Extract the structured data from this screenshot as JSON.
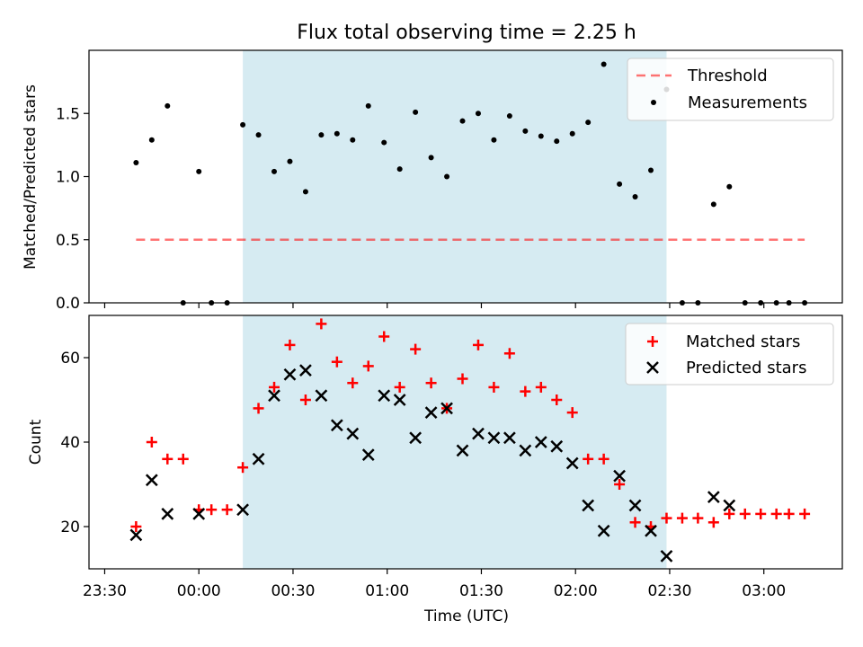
{
  "chart_data": [
    {
      "type": "scatter",
      "title": "Flux total observing time = 2.25 h",
      "ylabel": "Matched/Predicted stars",
      "xlabel": "",
      "xlim": [
        "23:25",
        "03:25"
      ],
      "ylim": [
        0,
        2.0
      ],
      "yticks": [
        "0.0",
        "0.5",
        "1.0",
        "1.5"
      ],
      "grid": false,
      "legend_position": "top-right",
      "shaded_interval": {
        "start": "00:14",
        "end": "02:29",
        "color": "#add8e6"
      },
      "threshold": {
        "name": "Threshold",
        "value": 0.5,
        "x_start": "23:40",
        "x_end": "03:13",
        "color": "#ff0000",
        "style": "dashed"
      },
      "series": [
        {
          "name": "Measurements",
          "color": "#000000",
          "marker": "dot",
          "x": [
            "23:40",
            "23:45",
            "23:50",
            "23:55",
            "00:00",
            "00:04",
            "00:09",
            "00:14",
            "00:19",
            "00:24",
            "00:29",
            "00:34",
            "00:39",
            "00:44",
            "00:49",
            "00:54",
            "00:59",
            "01:04",
            "01:09",
            "01:14",
            "01:19",
            "01:24",
            "01:29",
            "01:34",
            "01:39",
            "01:44",
            "01:49",
            "01:54",
            "01:59",
            "02:04",
            "02:09",
            "02:14",
            "02:19",
            "02:24",
            "02:29",
            "02:34",
            "02:39",
            "02:44",
            "02:49",
            "02:54",
            "02:59",
            "03:04",
            "03:08",
            "03:13"
          ],
          "values": [
            1.11,
            1.29,
            1.56,
            0.0,
            1.04,
            0.0,
            0.0,
            1.41,
            1.33,
            1.04,
            1.12,
            0.88,
            1.33,
            1.34,
            1.29,
            1.56,
            1.27,
            1.06,
            1.51,
            1.15,
            1.0,
            1.44,
            1.5,
            1.29,
            1.48,
            1.36,
            1.32,
            1.28,
            1.34,
            1.43,
            1.89,
            0.94,
            0.84,
            1.05,
            1.69,
            0.0,
            0.0,
            0.78,
            0.92,
            0.0,
            0.0,
            0.0,
            0.0,
            0.0
          ]
        }
      ]
    },
    {
      "type": "scatter",
      "title": "",
      "ylabel": "Count",
      "xlabel": "Time (UTC)",
      "xlim": [
        "23:25",
        "03:25"
      ],
      "ylim": [
        10,
        70
      ],
      "xticks": [
        "23:30",
        "00:00",
        "00:30",
        "01:00",
        "01:30",
        "02:00",
        "02:30",
        "03:00"
      ],
      "yticks": [
        "20",
        "40",
        "60"
      ],
      "grid": false,
      "legend_position": "top-right",
      "shaded_interval": {
        "start": "00:14",
        "end": "02:29",
        "color": "#add8e6"
      },
      "series": [
        {
          "name": "Matched stars",
          "color": "#ff0000",
          "marker": "plus",
          "x": [
            "23:40",
            "23:45",
            "23:50",
            "23:55",
            "00:00",
            "00:04",
            "00:09",
            "00:14",
            "00:19",
            "00:24",
            "00:29",
            "00:34",
            "00:39",
            "00:44",
            "00:49",
            "00:54",
            "00:59",
            "01:04",
            "01:09",
            "01:14",
            "01:19",
            "01:24",
            "01:29",
            "01:34",
            "01:39",
            "01:44",
            "01:49",
            "01:54",
            "01:59",
            "02:04",
            "02:09",
            "02:14",
            "02:19",
            "02:24",
            "02:29",
            "02:34",
            "02:39",
            "02:44",
            "02:49",
            "02:54",
            "02:59",
            "03:04",
            "03:08",
            "03:13"
          ],
          "values": [
            20,
            40,
            36,
            36,
            24,
            24,
            24,
            34,
            48,
            53,
            63,
            50,
            68,
            59,
            54,
            58,
            65,
            53,
            62,
            54,
            48,
            55,
            63,
            53,
            61,
            52,
            53,
            50,
            47,
            36,
            36,
            30,
            21,
            20,
            22,
            22,
            22,
            21,
            23,
            23,
            23,
            23,
            23,
            23
          ]
        },
        {
          "name": "Predicted stars",
          "color": "#000000",
          "marker": "x",
          "x": [
            "23:40",
            "23:45",
            "23:50",
            "00:00",
            "00:14",
            "00:19",
            "00:24",
            "00:29",
            "00:34",
            "00:39",
            "00:44",
            "00:49",
            "00:54",
            "00:59",
            "01:04",
            "01:09",
            "01:14",
            "01:19",
            "01:24",
            "01:29",
            "01:34",
            "01:39",
            "01:44",
            "01:49",
            "01:54",
            "01:59",
            "02:04",
            "02:09",
            "02:14",
            "02:19",
            "02:24",
            "02:29",
            "02:44",
            "02:49"
          ],
          "values": [
            18,
            31,
            23,
            23,
            24,
            36,
            51,
            56,
            57,
            51,
            44,
            42,
            37,
            51,
            50,
            41,
            47,
            48,
            38,
            42,
            41,
            41,
            38,
            40,
            39,
            35,
            25,
            19,
            32,
            25,
            19,
            13,
            27,
            25
          ]
        }
      ]
    }
  ]
}
